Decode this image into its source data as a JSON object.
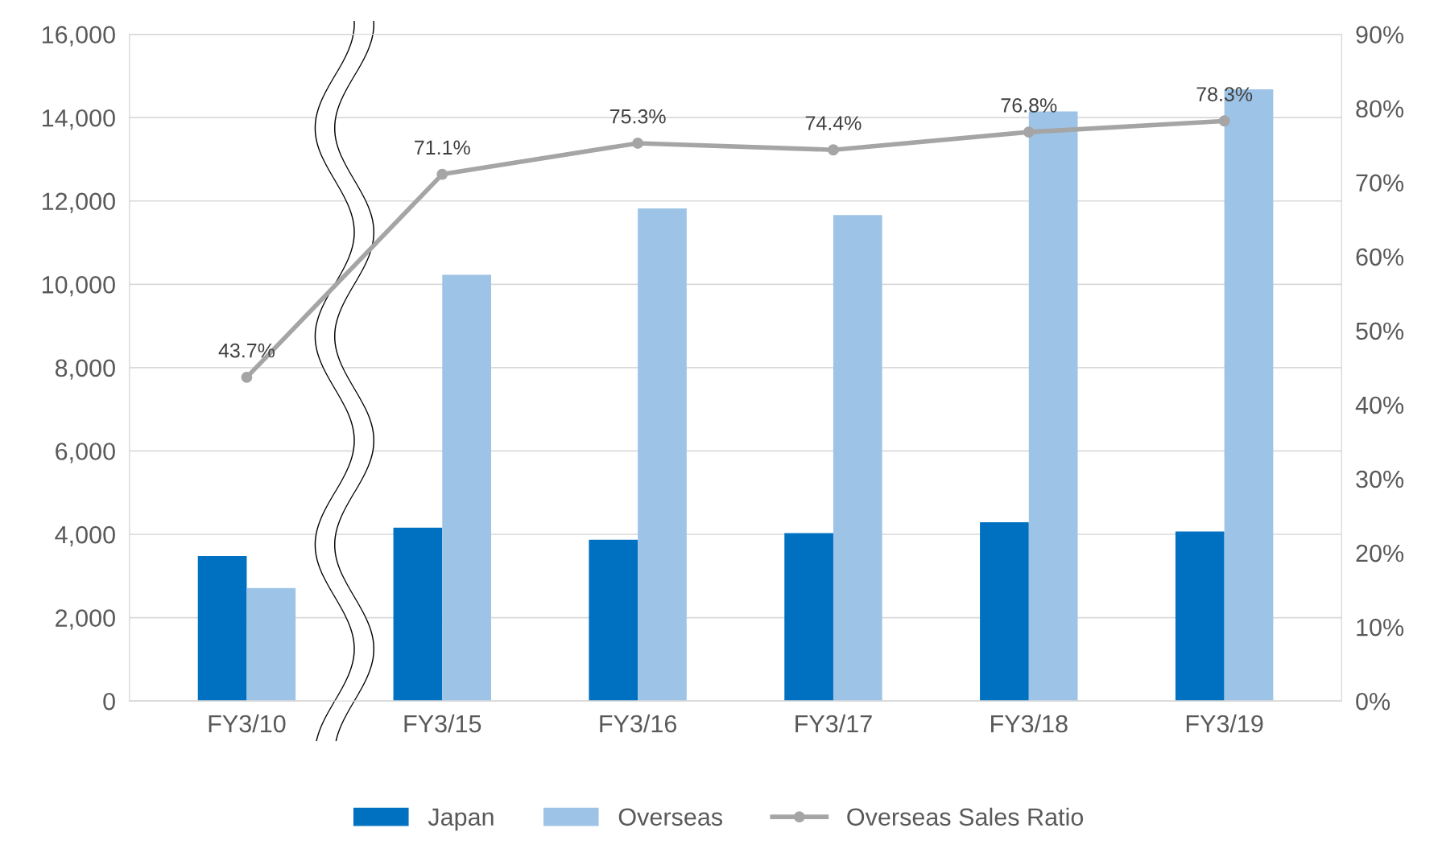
{
  "chart_data": {
    "type": "bar",
    "categories": [
      "FY3/10",
      "FY3/15",
      "FY3/16",
      "FY3/17",
      "FY3/18",
      "FY3/19"
    ],
    "series": [
      {
        "name": "Japan",
        "color": "#0070c0",
        "values": [
          3480,
          4160,
          3870,
          4030,
          4290,
          4070
        ]
      },
      {
        "name": "Overseas",
        "color": "#9dc3e6",
        "values": [
          2710,
          10230,
          11820,
          11660,
          14150,
          14680
        ]
      },
      {
        "name": "Overseas Sales Ratio",
        "type": "line",
        "axis": "y2",
        "color": "#a5a5a5",
        "marker": "circle",
        "values": [
          43.7,
          71.1,
          75.3,
          74.4,
          76.8,
          78.3
        ],
        "value_labels": [
          "43.7%",
          "71.1%",
          "75.3%",
          "74.4%",
          "76.8%",
          "78.3%"
        ]
      }
    ],
    "ylim": [
      0,
      16000
    ],
    "yticks": [
      {
        "value": 0,
        "label": "0"
      },
      {
        "value": 2000,
        "label": "2,000"
      },
      {
        "value": 4000,
        "label": "4,000"
      },
      {
        "value": 6000,
        "label": "6,000"
      },
      {
        "value": 8000,
        "label": "8,000"
      },
      {
        "value": 10000,
        "label": "10,000"
      },
      {
        "value": 12000,
        "label": "12,000"
      },
      {
        "value": 14000,
        "label": "14,000"
      },
      {
        "value": 16000,
        "label": "16,000"
      }
    ],
    "y2lim": [
      0,
      90
    ],
    "y2ticks": [
      {
        "value": 0,
        "label": "0%"
      },
      {
        "value": 10,
        "label": "10%"
      },
      {
        "value": 20,
        "label": "20%"
      },
      {
        "value": 30,
        "label": "30%"
      },
      {
        "value": 40,
        "label": "40%"
      },
      {
        "value": 50,
        "label": "50%"
      },
      {
        "value": 60,
        "label": "60%"
      },
      {
        "value": 70,
        "label": "70%"
      },
      {
        "value": 80,
        "label": "80%"
      },
      {
        "value": 90,
        "label": "90%"
      }
    ],
    "grid": "y",
    "legend": "bottom"
  }
}
